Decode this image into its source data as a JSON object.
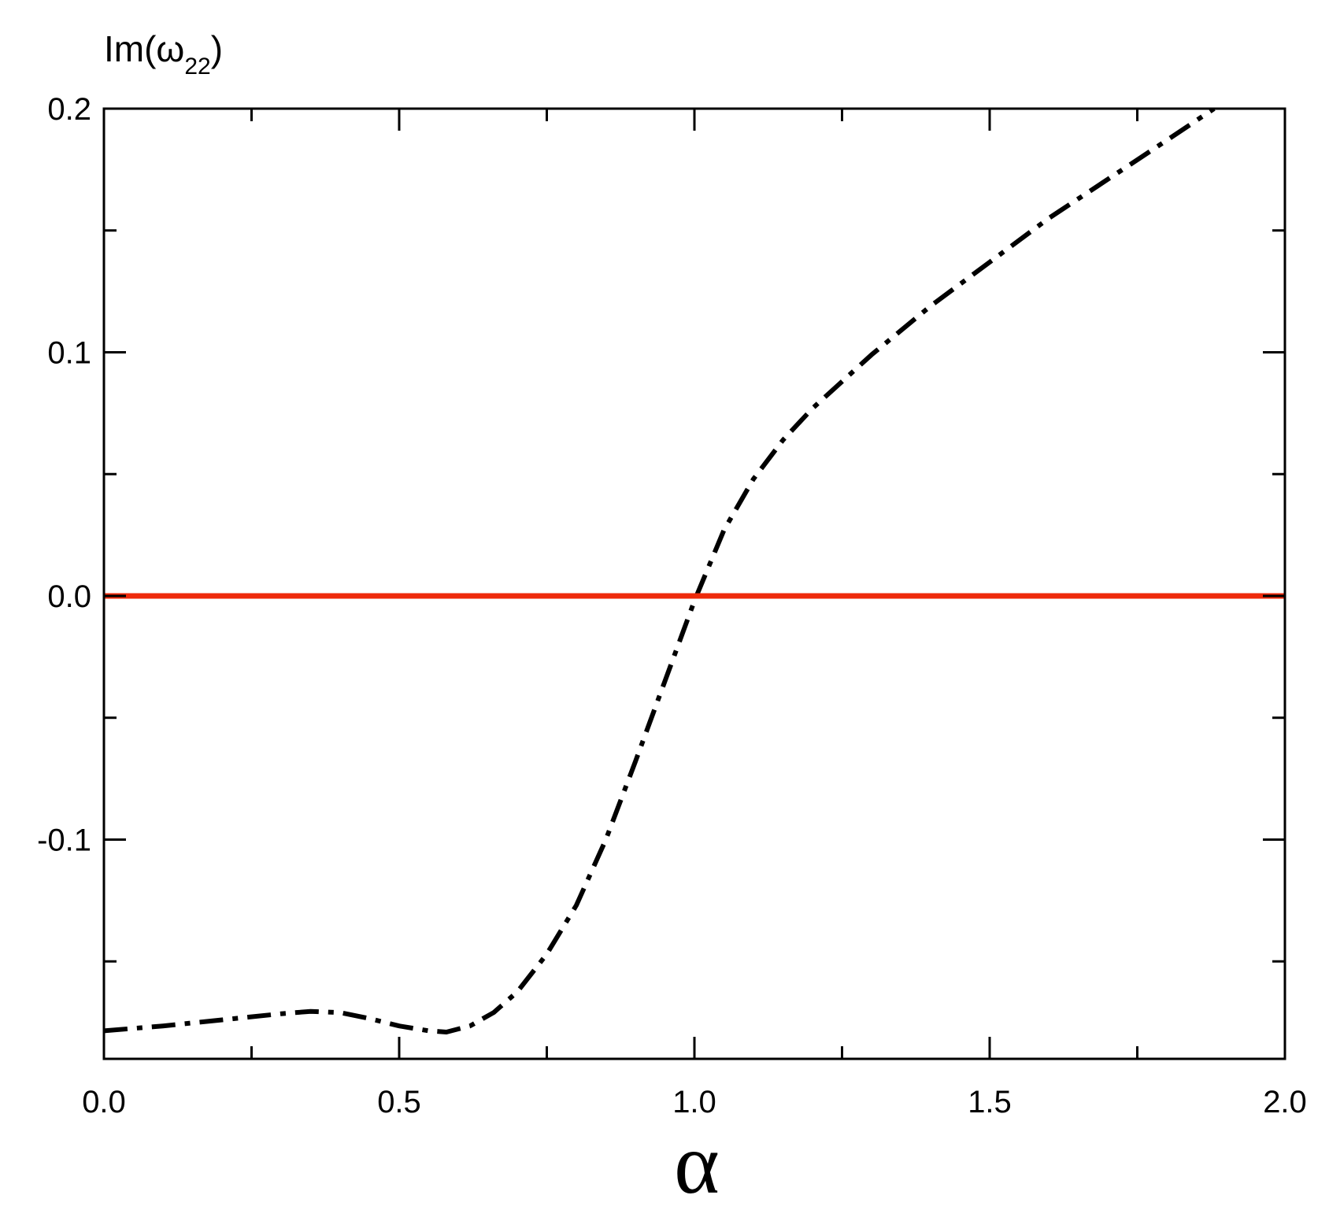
{
  "chart_data": {
    "type": "line",
    "title": "",
    "xlabel": "α",
    "ylabel": {
      "prefix": "Im(ω",
      "subscript": "22",
      "suffix": ")"
    },
    "xlim": [
      0.0,
      2.0
    ],
    "ylim": [
      -0.19,
      0.2
    ],
    "x_ticks": [
      {
        "value": 0.0,
        "label": "0.0"
      },
      {
        "value": 0.5,
        "label": "0.5"
      },
      {
        "value": 1.0,
        "label": "1.0"
      },
      {
        "value": 1.5,
        "label": "1.5"
      },
      {
        "value": 2.0,
        "label": "2.0"
      }
    ],
    "x_minor_ticks": [
      0.25,
      0.75,
      1.25,
      1.75
    ],
    "y_ticks": [
      {
        "value": -0.1,
        "label": "-0.1"
      },
      {
        "value": 0.0,
        "label": "0.0"
      },
      {
        "value": 0.1,
        "label": "0.1"
      },
      {
        "value": 0.2,
        "label": "0.2"
      }
    ],
    "y_minor_ticks": [
      -0.15,
      -0.05,
      0.05,
      0.15
    ],
    "grid": false,
    "legend": "none",
    "series": [
      {
        "style": "dash-dot",
        "color": "#000000",
        "x": [
          0.0,
          0.1,
          0.2,
          0.3,
          0.35,
          0.4,
          0.45,
          0.5,
          0.55,
          0.58,
          0.62,
          0.66,
          0.7,
          0.75,
          0.8,
          0.85,
          0.9,
          0.95,
          1.0,
          1.05,
          1.1,
          1.15,
          1.2,
          1.3,
          1.4,
          1.5,
          1.6,
          1.7,
          1.8,
          1.88
        ],
        "y": [
          -0.1785,
          -0.1765,
          -0.174,
          -0.1715,
          -0.1705,
          -0.171,
          -0.1735,
          -0.1765,
          -0.1785,
          -0.179,
          -0.1765,
          -0.171,
          -0.1625,
          -0.147,
          -0.127,
          -0.1,
          -0.068,
          -0.035,
          -0.002,
          0.027,
          0.048,
          0.064,
          0.077,
          0.099,
          0.119,
          0.137,
          0.155,
          0.171,
          0.187,
          0.2
        ]
      },
      {
        "style": "solid",
        "color": "#ee2a0b",
        "x": [
          0.0,
          2.0
        ],
        "y": [
          0.0,
          0.0
        ]
      }
    ]
  }
}
